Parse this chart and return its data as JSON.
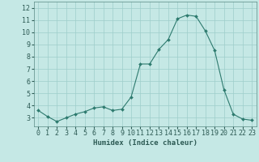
{
  "x": [
    0,
    1,
    2,
    3,
    4,
    5,
    6,
    7,
    8,
    9,
    10,
    11,
    12,
    13,
    14,
    15,
    16,
    17,
    18,
    19,
    20,
    21,
    22,
    23
  ],
  "y": [
    3.6,
    3.1,
    2.7,
    3.0,
    3.3,
    3.5,
    3.8,
    3.9,
    3.6,
    3.7,
    4.7,
    7.4,
    7.4,
    8.6,
    9.4,
    11.1,
    11.4,
    11.3,
    10.1,
    8.5,
    5.3,
    3.3,
    2.9,
    2.8
  ],
  "line_color": "#2d7a6e",
  "marker": "D",
  "marker_size": 2.0,
  "bg_color": "#c5e8e5",
  "grid_color": "#9ececa",
  "xlabel": "Humidex (Indice chaleur)",
  "xlim": [
    -0.5,
    23.5
  ],
  "ylim": [
    2.3,
    12.5
  ],
  "yticks": [
    3,
    4,
    5,
    6,
    7,
    8,
    9,
    10,
    11,
    12
  ],
  "xticks": [
    0,
    1,
    2,
    3,
    4,
    5,
    6,
    7,
    8,
    9,
    10,
    11,
    12,
    13,
    14,
    15,
    16,
    17,
    18,
    19,
    20,
    21,
    22,
    23
  ],
  "label_fontsize": 6.5,
  "tick_fontsize": 6.0,
  "tick_color": "#2d5a54",
  "spine_color": "#5a8a84",
  "line_width": 0.8
}
